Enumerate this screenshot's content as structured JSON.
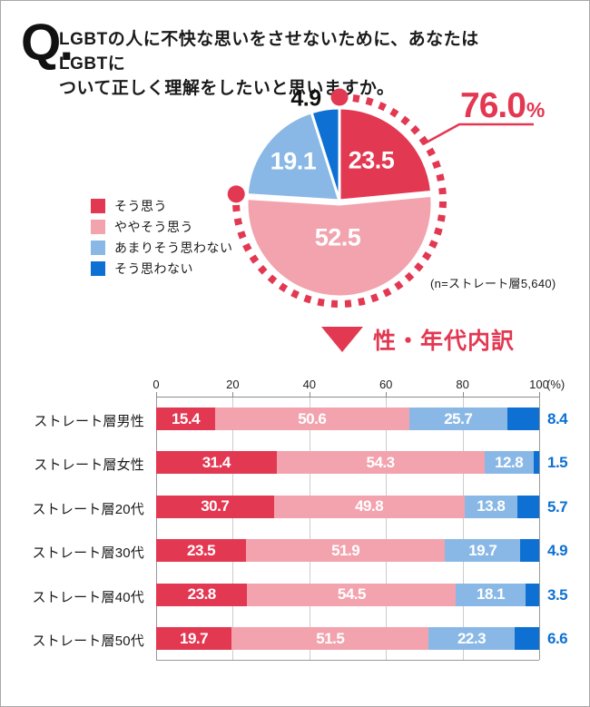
{
  "question": {
    "prefix": "Q.",
    "line1": "LGBTの人に不快な思いをさせないために、あなたはLGBTに",
    "line2": "ついて正しく理解をしたいと思いますか。"
  },
  "colors": {
    "accent_red": "#e33852",
    "pink": "#f2a3ae",
    "light_blue": "#8ab8e6",
    "blue": "#0d70d2",
    "grid_light": "#cccccc",
    "grid_dark": "#999999",
    "axis": "#8c8c8c"
  },
  "chart_data": [
    {
      "type": "pie",
      "title": "LGBTの人に不快な思いをさせないために、あなたはLGBTについて正しく理解をしたいと思いますか。",
      "categories": [
        "そう思う",
        "ややそう思う",
        "あまりそう思わない",
        "そう思わない"
      ],
      "values": [
        23.5,
        52.5,
        19.1,
        4.9
      ],
      "colors": [
        "#e33852",
        "#f2a3ae",
        "#8ab8e6",
        "#0d70d2"
      ],
      "start_angle_deg": 0,
      "direction": "clockwise",
      "annotation": {
        "value": "76.0",
        "unit": "%",
        "covers_slices": [
          0,
          1
        ]
      },
      "note": "(n=ストレート層5,640)",
      "legend_position": "left"
    },
    {
      "type": "bar",
      "subtype": "horizontal-stacked-100",
      "title": "性・年代内訳",
      "categories": [
        "ストレート層男性",
        "ストレート層女性",
        "ストレート層20代",
        "ストレート層30代",
        "ストレート層40代",
        "ストレート層50代"
      ],
      "series": [
        {
          "name": "そう思う",
          "values": [
            15.4,
            31.4,
            30.7,
            23.5,
            23.8,
            19.7
          ]
        },
        {
          "name": "ややそう思う",
          "values": [
            50.6,
            54.3,
            49.8,
            51.9,
            54.5,
            51.5
          ]
        },
        {
          "name": "あまりそう思わない",
          "values": [
            25.7,
            12.8,
            13.8,
            19.7,
            18.1,
            22.3
          ]
        },
        {
          "name": "そう思わない",
          "values": [
            8.4,
            1.5,
            5.7,
            4.9,
            3.5,
            6.6
          ]
        }
      ],
      "x_ticks": [
        "0",
        "20",
        "40",
        "60",
        "80",
        "100"
      ],
      "x_unit_label": "(%)",
      "xlim": [
        0,
        100
      ],
      "grid": true,
      "value_labels": "inside-white-except-last-series-outside-blue"
    }
  ]
}
